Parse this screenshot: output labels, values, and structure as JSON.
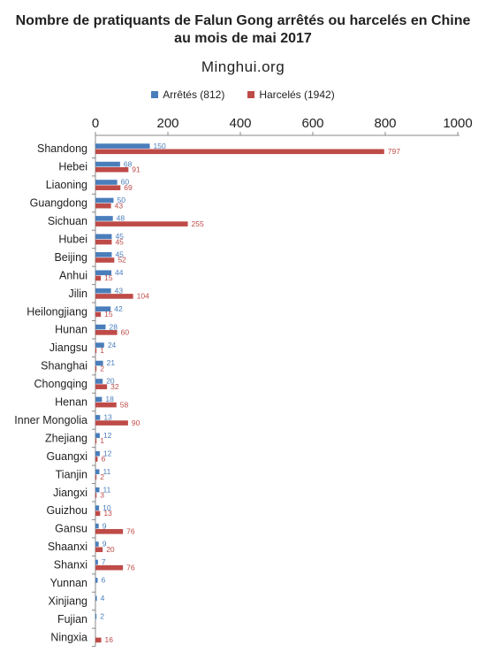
{
  "chart_data": {
    "type": "bar",
    "orientation": "horizontal",
    "title": "Nombre de pratiquants de Falun Gong arrêtés ou harcelés en Chine",
    "title_line2": "au mois de mai 2017",
    "subtitle": "Minghui.org",
    "xlim": [
      0,
      1000
    ],
    "xticks": [
      0,
      200,
      400,
      600,
      800,
      1000
    ],
    "grid": false,
    "legend_position": "top",
    "categories": [
      "Shandong",
      "Hebei",
      "Liaoning",
      "Guangdong",
      "Sichuan",
      "Hubei",
      "Beijing",
      "Anhui",
      "Jilin",
      "Heilongjiang",
      "Hunan",
      "Jiangsu",
      "Shanghai",
      "Chongqing",
      "Henan",
      "Inner Mongolia",
      "Zhejiang",
      "Guangxi",
      "Tianjin",
      "Jiangxi",
      "Guizhou",
      "Gansu",
      "Shaanxi",
      "Shanxi",
      "Yunnan",
      "Xinjiang",
      "Fujian",
      "Ningxia"
    ],
    "series": [
      {
        "name": "Arrêtés (812)",
        "color": "#4a7ebb",
        "values": [
          150,
          68,
          60,
          50,
          48,
          45,
          45,
          44,
          43,
          42,
          28,
          24,
          21,
          20,
          18,
          13,
          12,
          12,
          11,
          11,
          10,
          9,
          9,
          7,
          6,
          4,
          2,
          null
        ]
      },
      {
        "name": "Harcelés (1942)",
        "color": "#be4b48",
        "values": [
          797,
          91,
          69,
          43,
          255,
          45,
          52,
          15,
          104,
          15,
          60,
          1,
          2,
          32,
          58,
          90,
          1,
          6,
          2,
          3,
          13,
          76,
          20,
          76,
          null,
          null,
          null,
          16
        ]
      }
    ]
  }
}
